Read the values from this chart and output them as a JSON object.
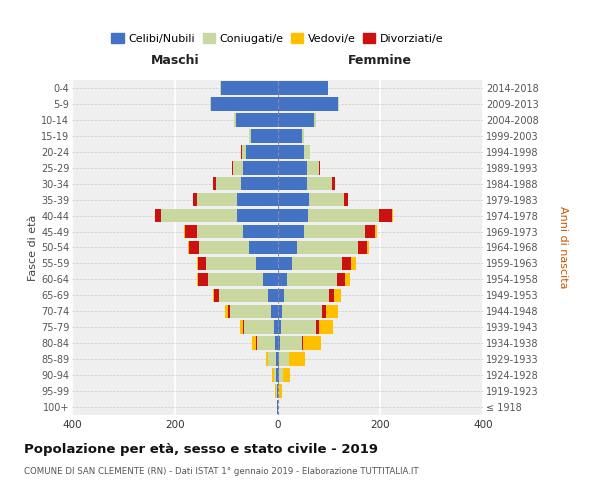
{
  "age_groups": [
    "100+",
    "95-99",
    "90-94",
    "85-89",
    "80-84",
    "75-79",
    "70-74",
    "65-69",
    "60-64",
    "55-59",
    "50-54",
    "45-49",
    "40-44",
    "35-39",
    "30-34",
    "25-29",
    "20-24",
    "15-19",
    "10-14",
    "5-9",
    "0-4"
  ],
  "birth_years": [
    "≤ 1918",
    "1919-1923",
    "1924-1928",
    "1929-1933",
    "1934-1938",
    "1939-1943",
    "1944-1948",
    "1949-1953",
    "1954-1958",
    "1959-1963",
    "1964-1968",
    "1969-1973",
    "1974-1978",
    "1979-1983",
    "1984-1988",
    "1989-1993",
    "1994-1998",
    "1999-2003",
    "2004-2008",
    "2009-2013",
    "2014-2018"
  ],
  "maschi_celibi": [
    1,
    1,
    2,
    3,
    5,
    7,
    12,
    18,
    28,
    42,
    55,
    68,
    78,
    78,
    72,
    68,
    62,
    52,
    80,
    130,
    110
  ],
  "maschi_coniugati": [
    0,
    2,
    5,
    15,
    35,
    58,
    80,
    95,
    108,
    98,
    98,
    88,
    148,
    78,
    48,
    18,
    8,
    4,
    4,
    2,
    1
  ],
  "maschi_vedovi": [
    0,
    1,
    3,
    5,
    8,
    5,
    5,
    3,
    2,
    1,
    1,
    1,
    1,
    0,
    0,
    0,
    0,
    0,
    0,
    0,
    0
  ],
  "maschi_divorziati": [
    0,
    0,
    0,
    0,
    2,
    3,
    5,
    10,
    18,
    15,
    20,
    25,
    12,
    8,
    5,
    2,
    1,
    0,
    0,
    0,
    0
  ],
  "femmine_nubili": [
    0,
    1,
    2,
    3,
    4,
    7,
    8,
    12,
    18,
    28,
    38,
    52,
    60,
    62,
    58,
    58,
    52,
    48,
    72,
    118,
    98
  ],
  "femmine_coniugate": [
    0,
    2,
    8,
    20,
    44,
    68,
    78,
    88,
    98,
    98,
    118,
    118,
    138,
    68,
    48,
    22,
    12,
    4,
    2,
    2,
    1
  ],
  "femmine_vedove": [
    0,
    5,
    15,
    30,
    34,
    28,
    24,
    14,
    10,
    8,
    5,
    3,
    2,
    0,
    0,
    0,
    0,
    0,
    0,
    0,
    0
  ],
  "femmine_divorziate": [
    0,
    0,
    0,
    0,
    2,
    5,
    8,
    10,
    15,
    18,
    18,
    20,
    25,
    8,
    5,
    2,
    0,
    0,
    0,
    0,
    0
  ],
  "colors_celibi": "#4472c4",
  "colors_coniugati": "#c8d8a0",
  "colors_vedovi": "#ffc000",
  "colors_divorziati": "#cc1111",
  "xlim": 400,
  "title": "Popolazione per età, sesso e stato civile - 2019",
  "subtitle": "COMUNE DI SAN CLEMENTE (RN) - Dati ISTAT 1° gennaio 2019 - Elaborazione TUTTITALIA.IT",
  "ylabel_left": "Fasce di età",
  "ylabel_right": "Anni di nascita",
  "header_left": "Maschi",
  "header_right": "Femmine",
  "legend_labels": [
    "Celibi/Nubili",
    "Coniugati/e",
    "Vedovi/e",
    "Divorziati/e"
  ],
  "bg_color": "#efefef"
}
